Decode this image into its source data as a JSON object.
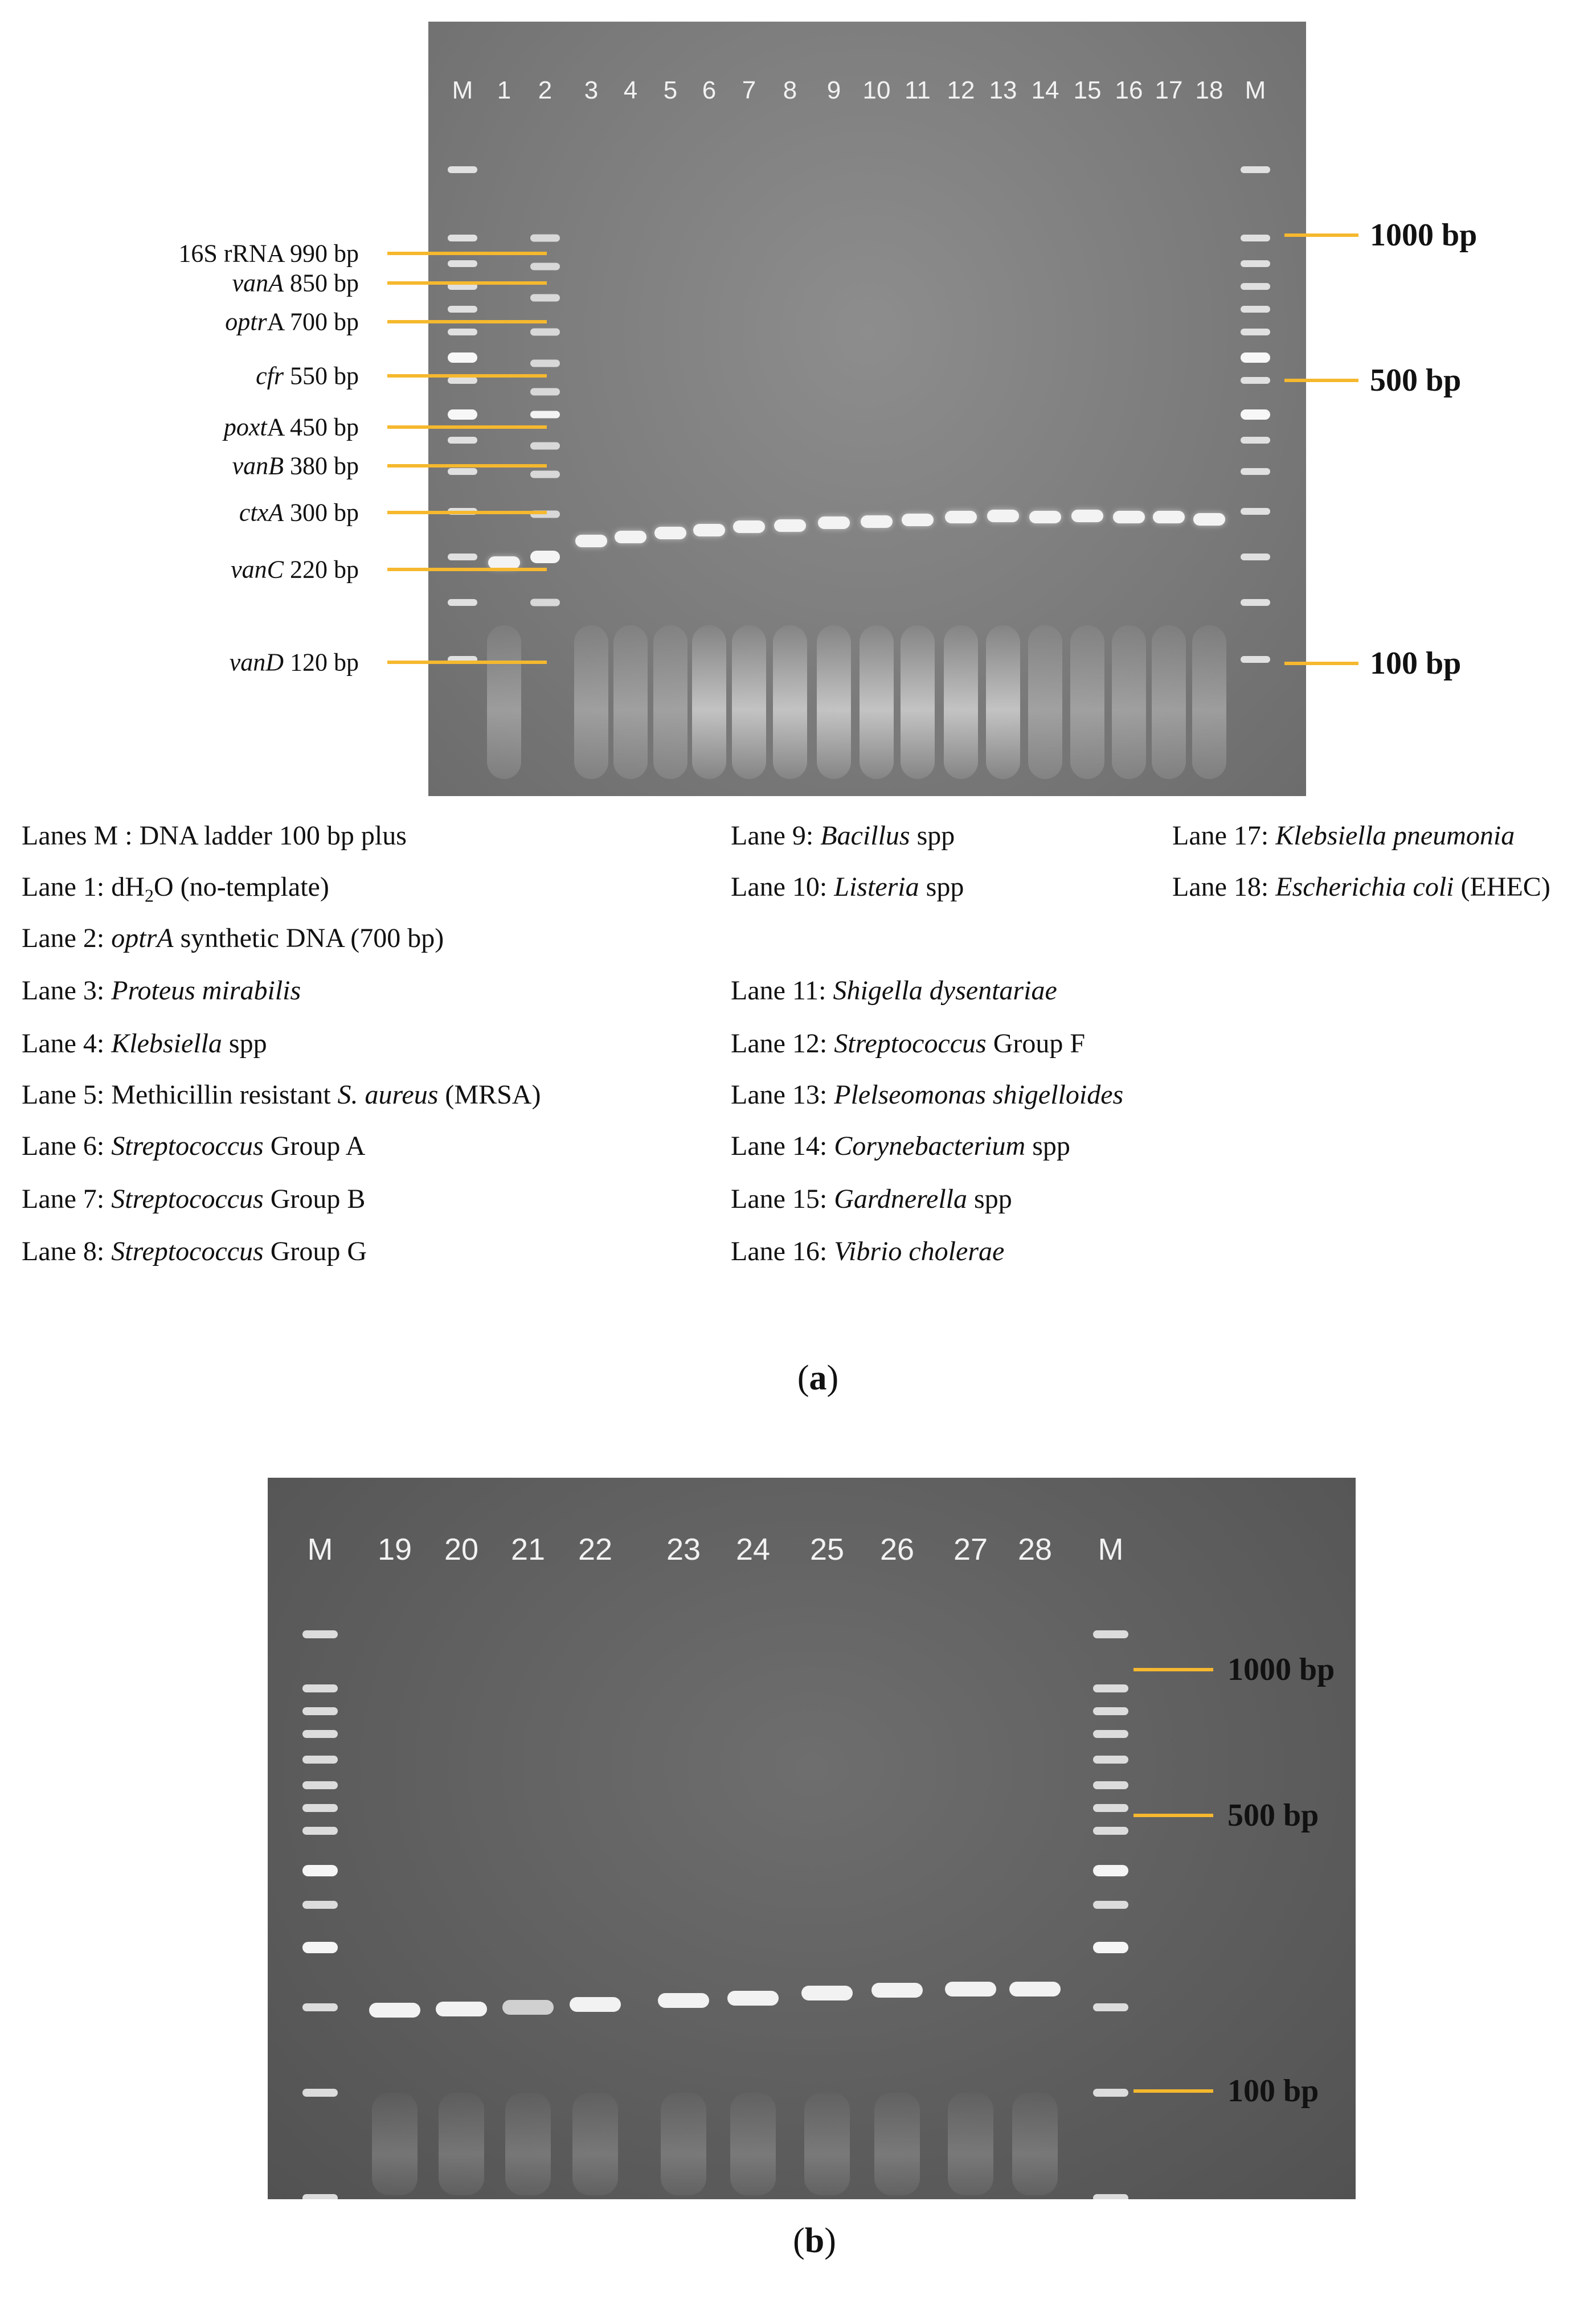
{
  "panel_a": {
    "lane_labels": [
      "M",
      "1",
      "2",
      "3",
      "4",
      "5",
      "6",
      "7",
      "8",
      "9",
      "10",
      "11",
      "12",
      "13",
      "14",
      "15",
      "16",
      "17",
      "18",
      "M"
    ],
    "gene_markers": [
      {
        "name": "16S rRNA",
        "size": "990 bp",
        "italic": false
      },
      {
        "name": "vanA",
        "size": "850 bp",
        "italic": true
      },
      {
        "name": "optrA",
        "size": "700 bp",
        "italic": "partial"
      },
      {
        "name": "cfr",
        "size": "550 bp",
        "italic": true
      },
      {
        "name": "poxtA",
        "size": "450 bp",
        "italic": "partial"
      },
      {
        "name": "vanB",
        "size": "380 bp",
        "italic": true
      },
      {
        "name": "ctxA",
        "size": "300 bp",
        "italic": true
      },
      {
        "name": "vanC",
        "size": "220 bp",
        "italic": true
      },
      {
        "name": "vanD",
        "size": "120 bp",
        "italic": true
      }
    ],
    "size_markers": [
      "1000 bp",
      "500 bp",
      "100 bp"
    ],
    "legend": {
      "col1": [
        {
          "prefix": "Lanes M : ",
          "text": "DNA ladder 100 bp plus",
          "italic": ""
        },
        {
          "prefix": "Lane 1: ",
          "text": "dH2O (no-template)",
          "italic": ""
        },
        {
          "prefix": "Lane 2: ",
          "italic": "optrA",
          "text": " synthetic DNA (700 bp)"
        },
        {
          "prefix": "Lane 3: ",
          "italic": "Proteus mirabilis",
          "text": ""
        },
        {
          "prefix": "Lane 4: ",
          "italic": "Klebsiella",
          "text": " spp"
        },
        {
          "prefix": "Lane 5: ",
          "text": "Methicillin resistant ",
          "italic": "S. aureus",
          "suffix": " (MRSA)"
        },
        {
          "prefix": "Lane 6: ",
          "italic": "Streptococcus",
          "text": " Group A"
        },
        {
          "prefix": "Lane 7: ",
          "italic": "Streptococcus",
          "text": " Group B"
        },
        {
          "prefix": "Lane 8: ",
          "italic": "Streptococcus",
          "text": " Group G"
        }
      ],
      "col2": [
        {
          "prefix": "Lane 9: ",
          "italic": "Bacillus",
          "text": " spp"
        },
        {
          "prefix": "Lane 10: ",
          "italic": "Listeria",
          "text": " spp"
        },
        {
          "prefix": "Lane 11: ",
          "italic": "Shigella dysentariae",
          "text": ""
        },
        {
          "prefix": "Lane 12: ",
          "italic": "Streptococcus",
          "text": " Group F"
        },
        {
          "prefix": "Lane 13: ",
          "italic": "Plelseomonas shigelloides",
          "text": ""
        },
        {
          "prefix": "Lane 14: ",
          "italic": "Corynebacterium",
          "text": " spp"
        },
        {
          "prefix": "Lane 15: ",
          "italic": "Gardnerella",
          "text": " spp"
        },
        {
          "prefix": "Lane 16: ",
          "italic": "Vibrio cholerae",
          "text": ""
        }
      ],
      "col3": [
        {
          "prefix": "Lane 17: ",
          "italic": "Klebsiella pneumonia",
          "text": ""
        },
        {
          "prefix": "Lane 18: ",
          "italic": "Escherichia coli",
          "text": " (EHEC)"
        }
      ]
    },
    "caption": "(a)"
  },
  "panel_b": {
    "lane_labels": [
      "M",
      "19",
      "20",
      "21",
      "22",
      "23",
      "24",
      "25",
      "26",
      "27",
      "28",
      "M"
    ],
    "size_markers": [
      "1000 bp",
      "500 bp",
      "100 bp"
    ],
    "caption": "(b)"
  },
  "colors": {
    "marker_line": "#f5b82e",
    "gel_a": "#7d7d7d",
    "gel_b": "#5e5e5e",
    "band": "#f4f4f4"
  }
}
